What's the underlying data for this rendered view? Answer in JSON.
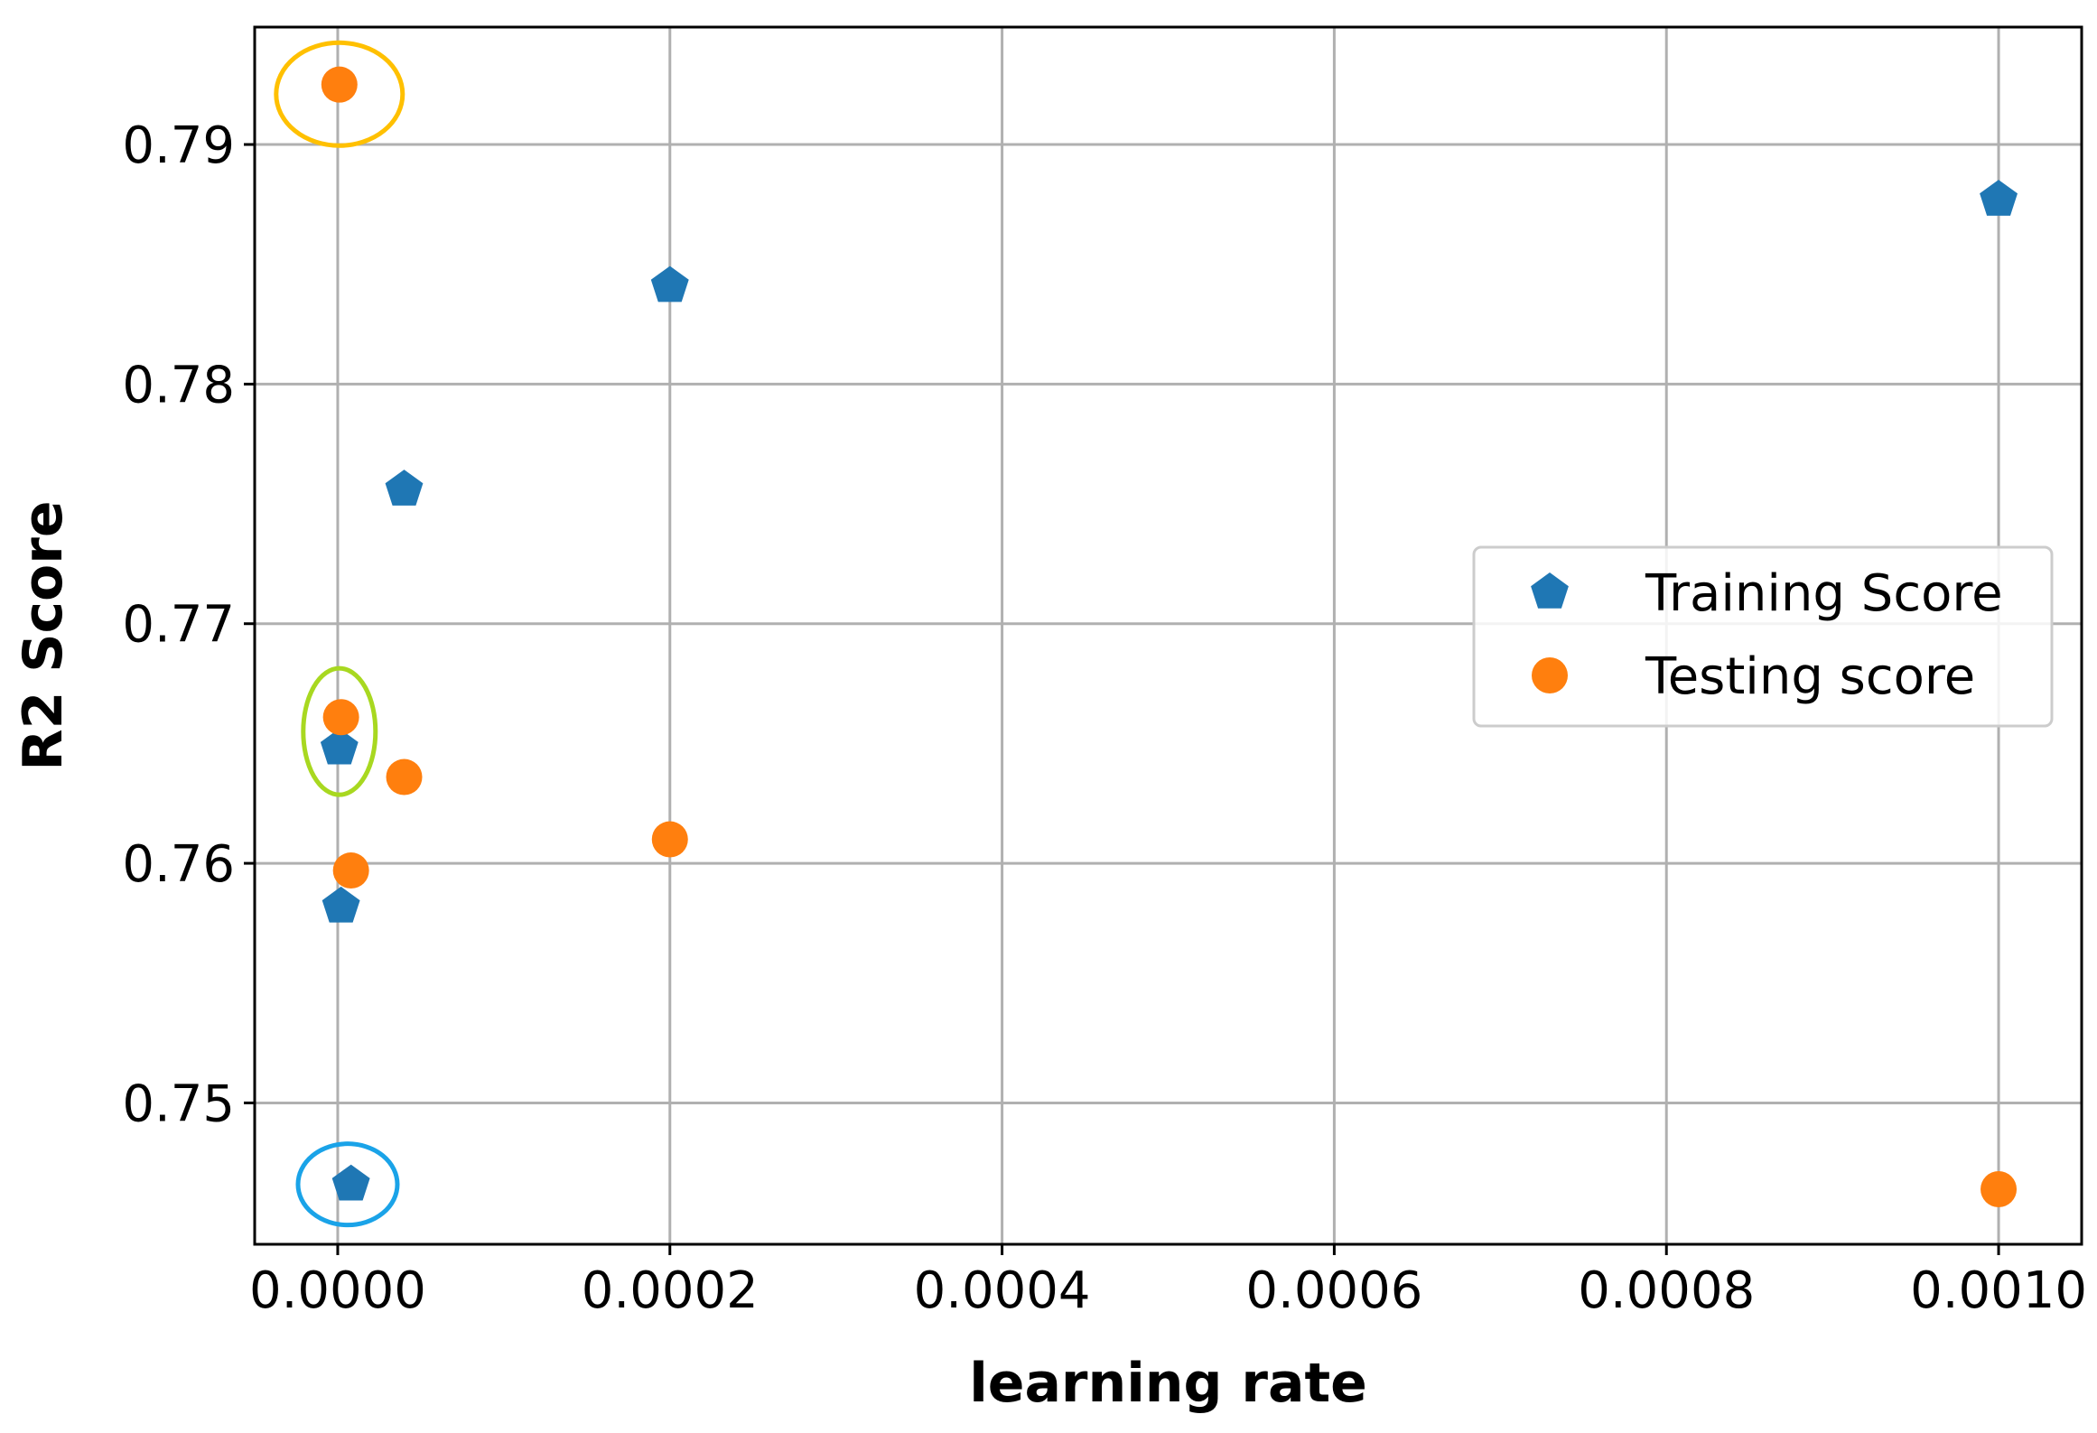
{
  "chart_data": {
    "type": "scatter",
    "title": "",
    "xlabel": "learning rate",
    "ylabel": "R2 Score",
    "xlim": [
      -5e-05,
      0.00105
    ],
    "ylim": [
      0.7441,
      0.7949
    ],
    "grid": true,
    "legend_position": "center-right",
    "x_ticks": [
      0.0,
      0.0002,
      0.0004,
      0.0006,
      0.0008,
      0.001
    ],
    "x_tick_labels": [
      "0.0000",
      "0.0002",
      "0.0004",
      "0.0006",
      "0.0008",
      "0.0010"
    ],
    "y_ticks": [
      0.75,
      0.76,
      0.77,
      0.78,
      0.79
    ],
    "y_tick_labels": [
      "0.75",
      "0.76",
      "0.77",
      "0.78",
      "0.79"
    ],
    "series": [
      {
        "name": "Training Score",
        "marker": "pentagon",
        "color": "#1f77b4",
        "points": [
          {
            "x": 1e-06,
            "y": 0.7648
          },
          {
            "x": 2e-06,
            "y": 0.7582
          },
          {
            "x": 8e-06,
            "y": 0.7466
          },
          {
            "x": 4e-05,
            "y": 0.7756
          },
          {
            "x": 0.0002,
            "y": 0.7841
          },
          {
            "x": 0.001,
            "y": 0.7877
          }
        ]
      },
      {
        "name": "Testing score",
        "marker": "circle",
        "color": "#ff7f0e",
        "points": [
          {
            "x": 1e-06,
            "y": 0.7925
          },
          {
            "x": 2e-06,
            "y": 0.7661
          },
          {
            "x": 8e-06,
            "y": 0.7597
          },
          {
            "x": 4e-05,
            "y": 0.7636
          },
          {
            "x": 0.0002,
            "y": 0.761
          },
          {
            "x": 0.001,
            "y": 0.7464
          }
        ]
      }
    ],
    "highlights": [
      {
        "name": "highlight-ellipse-best-testing",
        "color": "#ffc000",
        "x": 1e-06,
        "y": 0.7921
      },
      {
        "name": "highlight-ellipse-balanced",
        "color": "#a8d820",
        "x": 1e-06,
        "y": 0.7655
      },
      {
        "name": "highlight-ellipse-worst-training",
        "color": "#1aa3e8",
        "x": 6e-06,
        "y": 0.7466
      }
    ]
  }
}
